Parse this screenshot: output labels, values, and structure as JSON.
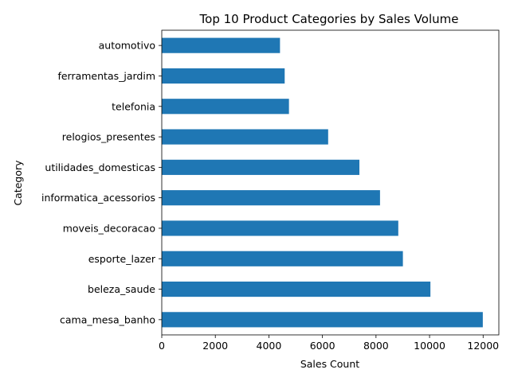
{
  "chart_data": {
    "type": "bar",
    "orientation": "horizontal",
    "title": "Top 10 Product Categories by Sales Volume",
    "xlabel": "Sales Count",
    "ylabel": "Category",
    "categories": [
      "cama_mesa_banho",
      "beleza_saude",
      "esporte_lazer",
      "moveis_decoracao",
      "informatica_acessorios",
      "utilidades_domesticas",
      "relogios_presentes",
      "telefonia",
      "ferramentas_jardim",
      "automotivo"
    ],
    "values": [
      11988,
      10032,
      9004,
      8832,
      8150,
      7380,
      6213,
      4750,
      4590,
      4415
    ],
    "xlim": [
      0,
      12587
    ],
    "xticks": [
      0,
      2000,
      4000,
      6000,
      8000,
      10000,
      12000
    ],
    "grid": false,
    "bar_color": "#1f77b4"
  }
}
